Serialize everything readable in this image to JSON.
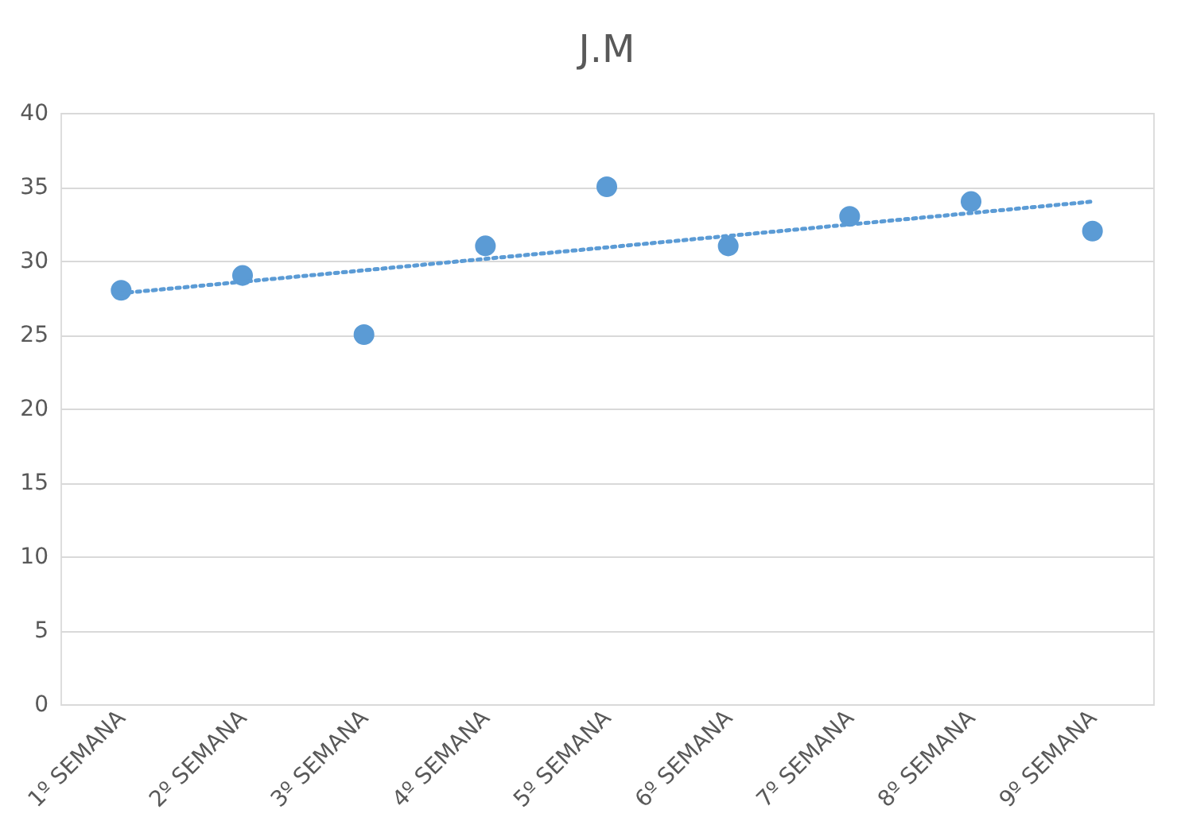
{
  "chart_data": {
    "type": "scatter",
    "title": "J.M",
    "categories": [
      "1º SEMANA",
      "2º SEMANA",
      "3º SEMANA",
      "4º SEMANA",
      "5º SEMANA",
      "6º SEMANA",
      "7º SEMANA",
      "8º SEMANA",
      "9º SEMANA"
    ],
    "series": [
      {
        "color": "#5b9bd5",
        "marker": "circle",
        "values": [
          28,
          29,
          25,
          31,
          35,
          31,
          33,
          34,
          32
        ]
      },
      {
        "type": "line",
        "color": "#5b9bd5",
        "line_style": "dotted",
        "values": [
          27.8,
          null,
          null,
          null,
          null,
          null,
          null,
          null,
          34.0
        ]
      }
    ],
    "ylim": [
      0,
      40
    ],
    "yticks": [
      0,
      5,
      10,
      15,
      20,
      25,
      30,
      35,
      40
    ],
    "grid": "y"
  }
}
